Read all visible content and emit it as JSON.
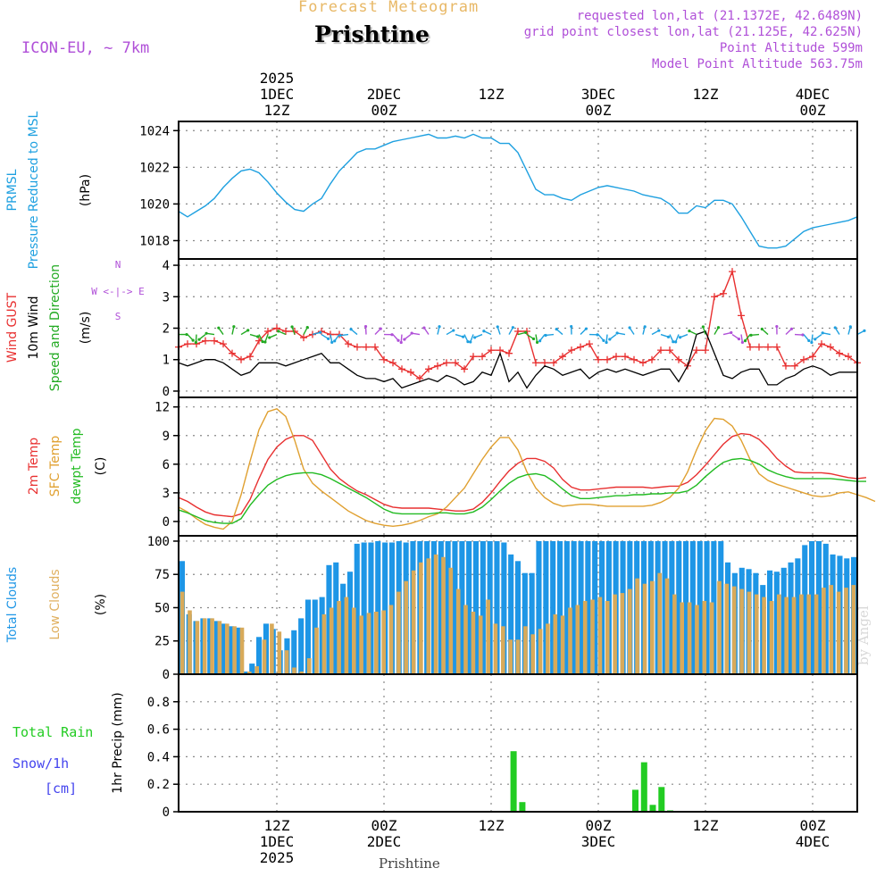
{
  "header": {
    "product": "Forecast Meteogram",
    "location": "Prishtine",
    "model": "ICON-EU, ~ 7km",
    "requested": "requested lon,lat (21.1372E, 42.6489N)",
    "grid_point": "grid point closest lon,lat (21.125E, 42.625N)",
    "point_alt": "Point Altitude 599m",
    "model_alt": "Model Point Altitude 563.75m",
    "footer_location": "Prishtine",
    "credit": "by Angel"
  },
  "colors": {
    "prmsl": "#1ea0e0",
    "gust": "#e83030",
    "wind": "#000000",
    "dir": "#22aa22",
    "temp2m": "#e83030",
    "sfc": "#e0a030",
    "dew": "#22bb22",
    "total_clouds": "#1e96e6",
    "low_clouds": "#d8aa5a",
    "rain": "#22cc22",
    "snow": "#4444ee",
    "purple": "#b050d8",
    "tan": "#e0b060"
  },
  "chart_data": [
    {
      "type": "line",
      "name": "prmsl",
      "label_lines": [
        "PRMSL",
        "Pressure Reduced to MSL"
      ],
      "ylabel": "(hPa)",
      "ylim": [
        1017.0,
        1024.5
      ],
      "yticks": [
        1018,
        1020,
        1022,
        1024
      ],
      "x_range": [
        0,
        76
      ],
      "series": [
        {
          "name": "PRMSL",
          "color_key": "prmsl",
          "values": [
            1019.6,
            1019.3,
            1019.6,
            1019.9,
            1020.3,
            1020.9,
            1021.4,
            1021.8,
            1021.9,
            1021.7,
            1021.2,
            1020.6,
            1020.1,
            1019.7,
            1019.6,
            1020.0,
            1020.3,
            1021.1,
            1021.8,
            1022.3,
            1022.8,
            1023.0,
            1023.0,
            1023.2,
            1023.4,
            1023.5,
            1023.6,
            1023.7,
            1023.8,
            1023.6,
            1023.6,
            1023.7,
            1023.6,
            1023.8,
            1023.6,
            1023.6,
            1023.3,
            1023.3,
            1022.8,
            1021.8,
            1020.8,
            1020.5,
            1020.5,
            1020.3,
            1020.2,
            1020.5,
            1020.7,
            1020.9,
            1021.0,
            1020.9,
            1020.8,
            1020.7,
            1020.5,
            1020.4,
            1020.3,
            1020.0,
            1019.5,
            1019.5,
            1019.9,
            1019.8,
            1020.2,
            1020.2,
            1020.0,
            1019.3,
            1018.5,
            1017.7,
            1017.6,
            1017.6,
            1017.7,
            1018.1,
            1018.5,
            1018.7,
            1018.8,
            1018.9,
            1019.0,
            1019.1,
            1019.3
          ]
        }
      ]
    },
    {
      "type": "line",
      "name": "wind",
      "label_lines": [
        "Wind GUST",
        "10m Wind",
        "Speed and Direction"
      ],
      "ylabel": "(m/s)",
      "compass": [
        "N",
        "W <-|-> E",
        "S"
      ],
      "ylim": [
        -0.2,
        4.2
      ],
      "yticks": [
        0,
        1,
        2,
        3,
        4
      ],
      "x_range": [
        0,
        76
      ],
      "series": [
        {
          "name": "Wind GUST",
          "color_key": "gust",
          "values": [
            1.4,
            1.5,
            1.5,
            1.6,
            1.6,
            1.5,
            1.2,
            1.0,
            1.1,
            1.6,
            1.9,
            2.0,
            1.9,
            1.9,
            1.7,
            1.8,
            1.9,
            1.8,
            1.8,
            1.5,
            1.4,
            1.4,
            1.4,
            1.0,
            0.9,
            0.7,
            0.6,
            0.4,
            0.7,
            0.8,
            0.9,
            0.9,
            0.7,
            1.1,
            1.1,
            1.3,
            1.3,
            1.2,
            1.9,
            1.9,
            0.9,
            0.9,
            0.9,
            1.1,
            1.3,
            1.4,
            1.5,
            1.0,
            1.0,
            1.1,
            1.1,
            1.0,
            0.9,
            1.0,
            1.3,
            1.3,
            1.0,
            0.8,
            1.3,
            1.3,
            3.0,
            3.1,
            3.8,
            2.4,
            1.4,
            1.4,
            1.4,
            1.4,
            0.8,
            0.8,
            1.0,
            1.1,
            1.5,
            1.4,
            1.2,
            1.1,
            0.9
          ]
        },
        {
          "name": "10m Wind",
          "color_key": "wind",
          "values": [
            0.9,
            0.8,
            0.9,
            1.0,
            1.0,
            0.9,
            0.7,
            0.5,
            0.6,
            0.9,
            0.9,
            0.9,
            0.8,
            0.9,
            1.0,
            1.1,
            1.2,
            0.9,
            0.9,
            0.7,
            0.5,
            0.4,
            0.4,
            0.3,
            0.4,
            0.1,
            0.2,
            0.3,
            0.4,
            0.3,
            0.5,
            0.4,
            0.2,
            0.3,
            0.6,
            0.5,
            1.2,
            0.3,
            0.6,
            0.1,
            0.5,
            0.8,
            0.7,
            0.5,
            0.6,
            0.7,
            0.4,
            0.6,
            0.7,
            0.6,
            0.7,
            0.6,
            0.5,
            0.6,
            0.7,
            0.7,
            0.3,
            0.8,
            1.8,
            1.9,
            1.2,
            0.5,
            0.4,
            0.6,
            0.7,
            0.7,
            0.2,
            0.2,
            0.4,
            0.5,
            0.7,
            0.8,
            0.7,
            0.5,
            0.6,
            0.6,
            0.6
          ]
        }
      ],
      "direction_arrow_color_keys": [
        "dir",
        "dir",
        "dir",
        "dir",
        "dir",
        "dir",
        "dir",
        "dir",
        "dir",
        "dir",
        "dir",
        "dir",
        "dir",
        "dir",
        "dir",
        "prmsl",
        "prmsl",
        "prmsl",
        "prmsl",
        "prmsl",
        "prmsl",
        "purple",
        "purple",
        "purple",
        "purple",
        "purple",
        "purple",
        "purple",
        "purple",
        "prmsl",
        "prmsl",
        "prmsl",
        "prmsl",
        "prmsl",
        "prmsl",
        "prmsl",
        "prmsl",
        "prmsl",
        "dir",
        "dir",
        "dir",
        "prmsl",
        "prmsl",
        "prmsl",
        "prmsl",
        "prmsl",
        "prmsl",
        "prmsl",
        "prmsl",
        "prmsl",
        "prmsl",
        "prmsl",
        "prmsl",
        "prmsl",
        "prmsl",
        "prmsl",
        "prmsl",
        "prmsl",
        "dir",
        "dir",
        "dir",
        "purple",
        "purple",
        "purple",
        "dir",
        "dir",
        "dir",
        "purple",
        "purple",
        "purple",
        "prmsl",
        "prmsl",
        "prmsl",
        "prmsl",
        "prmsl",
        "prmsl",
        "prmsl"
      ]
    },
    {
      "type": "line",
      "name": "temperature",
      "label_lines": [
        "2m Temp",
        "SFC Temp",
        "dewpt Temp"
      ],
      "ylabel": "(C)",
      "ylim": [
        -1.5,
        13.0
      ],
      "yticks": [
        0,
        3,
        6,
        9,
        12
      ],
      "x_range": [
        0,
        76
      ],
      "series": [
        {
          "name": "2m Temp",
          "color_key": "temp2m",
          "values": [
            2.5,
            2.1,
            1.5,
            1.0,
            0.7,
            0.6,
            0.5,
            0.8,
            2.3,
            4.5,
            6.5,
            7.8,
            8.6,
            9.0,
            9.0,
            8.5,
            7.0,
            5.5,
            4.5,
            3.8,
            3.2,
            2.8,
            2.3,
            1.8,
            1.5,
            1.4,
            1.4,
            1.4,
            1.4,
            1.3,
            1.2,
            1.1,
            1.1,
            1.3,
            2.0,
            3.0,
            4.2,
            5.3,
            6.1,
            6.6,
            6.6,
            6.3,
            5.6,
            4.4,
            3.6,
            3.3,
            3.3,
            3.4,
            3.5,
            3.6,
            3.6,
            3.6,
            3.6,
            3.5,
            3.6,
            3.7,
            3.7,
            4.1,
            4.9,
            5.9,
            7.0,
            8.1,
            8.9,
            9.2,
            9.1,
            8.6,
            7.7,
            6.6,
            5.8,
            5.2,
            5.1,
            5.1,
            5.1,
            5.0,
            4.8,
            4.6,
            4.5,
            4.6
          ]
        },
        {
          "name": "SFC Temp",
          "color_key": "sfc",
          "values": [
            1.5,
            1.0,
            0.3,
            -0.3,
            -0.6,
            -0.8,
            0.0,
            2.8,
            6.3,
            9.6,
            11.5,
            11.8,
            11.0,
            8.5,
            5.5,
            4.0,
            3.2,
            2.5,
            1.8,
            1.1,
            0.6,
            0.1,
            -0.2,
            -0.4,
            -0.5,
            -0.4,
            -0.2,
            0.1,
            0.5,
            0.8,
            1.5,
            2.5,
            3.5,
            5.0,
            6.5,
            7.8,
            8.8,
            8.8,
            7.5,
            5.2,
            3.5,
            2.5,
            1.9,
            1.6,
            1.7,
            1.8,
            1.8,
            1.7,
            1.6,
            1.6,
            1.6,
            1.6,
            1.6,
            1.7,
            2.0,
            2.5,
            3.5,
            5.2,
            7.5,
            9.5,
            10.8,
            10.7,
            10.0,
            8.5,
            6.5,
            5.0,
            4.3,
            3.9,
            3.6,
            3.3,
            3.0,
            2.7,
            2.6,
            2.7,
            3.0,
            3.1,
            2.8,
            2.5,
            2.1
          ]
        },
        {
          "name": "dewpt Temp",
          "color_key": "dew",
          "values": [
            1.2,
            0.9,
            0.5,
            0.1,
            -0.1,
            -0.2,
            -0.2,
            0.3,
            1.7,
            2.8,
            3.8,
            4.4,
            4.8,
            5.0,
            5.1,
            5.1,
            4.9,
            4.5,
            4.0,
            3.5,
            3.0,
            2.5,
            1.9,
            1.3,
            0.9,
            0.8,
            0.8,
            0.8,
            0.8,
            0.9,
            0.9,
            0.8,
            0.8,
            1.0,
            1.5,
            2.3,
            3.2,
            4.0,
            4.6,
            4.9,
            5.0,
            4.8,
            4.2,
            3.4,
            2.7,
            2.4,
            2.4,
            2.5,
            2.6,
            2.7,
            2.7,
            2.8,
            2.8,
            2.9,
            2.9,
            3.0,
            3.0,
            3.2,
            3.8,
            4.7,
            5.5,
            6.2,
            6.5,
            6.6,
            6.4,
            6.0,
            5.4,
            5.0,
            4.7,
            4.5,
            4.5,
            4.5,
            4.5,
            4.5,
            4.4,
            4.3,
            4.2,
            4.2
          ]
        }
      ]
    },
    {
      "type": "bar",
      "name": "clouds",
      "label_lines": [
        "Total Clouds",
        "Low Clouds"
      ],
      "ylabel": "(%)",
      "ylim": [
        0,
        104
      ],
      "yticks": [
        0,
        25,
        50,
        75,
        100
      ],
      "x_range": [
        0,
        76
      ],
      "series": [
        {
          "name": "Total Clouds",
          "color_key": "total_clouds",
          "values": [
            85,
            45,
            40,
            42,
            42,
            40,
            38,
            36,
            35,
            2,
            8,
            28,
            38,
            34,
            18,
            27,
            33,
            42,
            56,
            56,
            58,
            82,
            84,
            68,
            77,
            98,
            99,
            99,
            100,
            99,
            99,
            100,
            99,
            100,
            100,
            100,
            100,
            100,
            100,
            100,
            100,
            100,
            100,
            100,
            100,
            100,
            99,
            90,
            85,
            76,
            76,
            100,
            100,
            100,
            100,
            100,
            100,
            100,
            100,
            100,
            100,
            100,
            100,
            100,
            100,
            100,
            100,
            100,
            100,
            100,
            100,
            100,
            100,
            100,
            100,
            100,
            100,
            100,
            84,
            76,
            80,
            79,
            76,
            67,
            78,
            77,
            80,
            84,
            87,
            97,
            100,
            100,
            98,
            90,
            89,
            87,
            88
          ]
        },
        {
          "name": "Low Clouds",
          "color_key": "low_clouds",
          "values": [
            62,
            48,
            40,
            42,
            42,
            40,
            38,
            36,
            35,
            2,
            6,
            26,
            38,
            32,
            18,
            5,
            2,
            12,
            35,
            45,
            50,
            55,
            58,
            50,
            44,
            46,
            47,
            48,
            52,
            62,
            70,
            78,
            84,
            87,
            90,
            88,
            80,
            64,
            52,
            47,
            44,
            56,
            38,
            36,
            26,
            26,
            36,
            30,
            34,
            38,
            45,
            44,
            50,
            52,
            55,
            56,
            58,
            55,
            60,
            61,
            64,
            72,
            68,
            70,
            76,
            72,
            60,
            54,
            54,
            52,
            55,
            54,
            70,
            68,
            66,
            64,
            62,
            60,
            58,
            55,
            60,
            58,
            58,
            60,
            60,
            60,
            65,
            67,
            62,
            65,
            67
          ]
        }
      ]
    },
    {
      "type": "bar",
      "name": "precip",
      "label_lines": [
        "Total  Rain",
        "Snow/1h",
        "[cm]"
      ],
      "ylabel": "1hr Precip (mm)",
      "ylim": [
        0,
        1.0
      ],
      "yticks": [
        0,
        0.2,
        0.4,
        0.6,
        0.8
      ],
      "x_range": [
        0,
        76
      ],
      "series": [
        {
          "name": "Total Rain",
          "color_key": "rain",
          "values": [
            0,
            0,
            0,
            0,
            0,
            0,
            0,
            0,
            0,
            0,
            0,
            0,
            0,
            0,
            0,
            0,
            0,
            0,
            0,
            0,
            0,
            0,
            0,
            0,
            0,
            0,
            0,
            0,
            0,
            0,
            0,
            0,
            0,
            0,
            0,
            0,
            0,
            0,
            0.44,
            0.07,
            0,
            0,
            0,
            0,
            0,
            0,
            0,
            0,
            0,
            0,
            0,
            0,
            0.16,
            0.36,
            0.05,
            0.18,
            0.01,
            0,
            0,
            0,
            0,
            0,
            0,
            0,
            0,
            0,
            0,
            0,
            0,
            0,
            0,
            0,
            0,
            0,
            0,
            0,
            0,
            0
          ]
        }
      ]
    }
  ],
  "time_axis": {
    "ticks": [
      {
        "x": 11,
        "top": [
          "2025",
          "1DEC",
          "12Z"
        ],
        "bottom": [
          "12Z",
          "1DEC",
          "2025"
        ]
      },
      {
        "x": 23,
        "top": [
          "2DEC",
          "00Z"
        ],
        "bottom": [
          "00Z",
          "2DEC"
        ]
      },
      {
        "x": 35,
        "top": [
          "12Z"
        ],
        "bottom": [
          "12Z"
        ]
      },
      {
        "x": 47,
        "top": [
          "3DEC",
          "00Z"
        ],
        "bottom": [
          "00Z",
          "3DEC"
        ]
      },
      {
        "x": 59,
        "top": [
          "12Z"
        ],
        "bottom": [
          "12Z"
        ]
      },
      {
        "x": 71,
        "top": [
          "4DEC",
          "00Z"
        ],
        "bottom": [
          "00Z",
          "4DEC"
        ]
      }
    ]
  }
}
